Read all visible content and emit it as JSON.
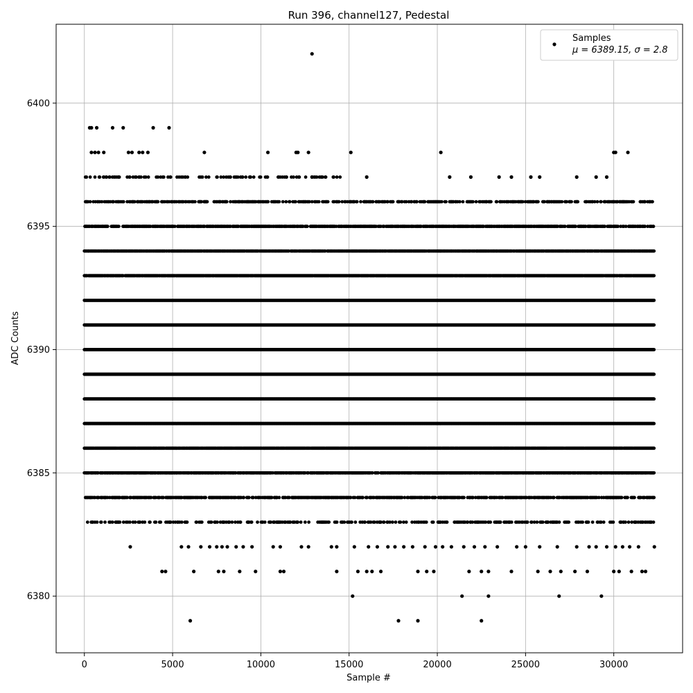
{
  "chart_data": {
    "type": "scatter",
    "title": "Run 396, channel127, Pedestal",
    "xlabel": "Sample #",
    "ylabel": "ADC Counts",
    "xlim": [
      -1600,
      33900
    ],
    "ylim": [
      6377.7,
      6403.2
    ],
    "xticks": [
      0,
      5000,
      10000,
      15000,
      20000,
      25000,
      30000
    ],
    "xtick_labels": [
      "0",
      "5000",
      "10000",
      "15000",
      "20000",
      "25000",
      "30000"
    ],
    "yticks": [
      6380,
      6385,
      6390,
      6395,
      6400
    ],
    "ytick_labels": [
      "6380",
      "6385",
      "6390",
      "6395",
      "6400"
    ],
    "grid": true,
    "legend": {
      "placement": "top-right",
      "name": "Samples",
      "stats": "μ = 6389.15, σ = 2.8"
    },
    "marker_color": "#000000",
    "sample_range": [
      0,
      32300
    ],
    "value_levels": [
      6379,
      6380,
      6381,
      6382,
      6383,
      6384,
      6385,
      6386,
      6387,
      6388,
      6389,
      6390,
      6391,
      6392,
      6393,
      6394,
      6395,
      6396,
      6397,
      6398,
      6399,
      6402
    ],
    "series": [
      {
        "name": "Samples",
        "points": [
          [
            12900,
            6402
          ],
          [
            6000,
            6379
          ],
          [
            17800,
            6379
          ],
          [
            18900,
            6379
          ],
          [
            22500,
            6379
          ],
          [
            15200,
            6380
          ],
          [
            21400,
            6380
          ],
          [
            22900,
            6380
          ],
          [
            26900,
            6380
          ],
          [
            29300,
            6380
          ],
          [
            300,
            6399
          ],
          [
            400,
            6399
          ],
          [
            700,
            6399
          ],
          [
            1600,
            6399
          ],
          [
            2200,
            6399
          ],
          [
            3900,
            6399
          ],
          [
            4800,
            6399
          ],
          [
            400,
            6398
          ],
          [
            600,
            6398
          ],
          [
            800,
            6398
          ],
          [
            1100,
            6398
          ],
          [
            2500,
            6398
          ],
          [
            2700,
            6398
          ],
          [
            3100,
            6398
          ],
          [
            3300,
            6398
          ],
          [
            3600,
            6398
          ],
          [
            6800,
            6398
          ],
          [
            10400,
            6398
          ],
          [
            12000,
            6398
          ],
          [
            12100,
            6398
          ],
          [
            12700,
            6398
          ],
          [
            15100,
            6398
          ],
          [
            20200,
            6398
          ],
          [
            30000,
            6398
          ],
          [
            30100,
            6398
          ],
          [
            30800,
            6398
          ],
          [
            4400,
            6381
          ],
          [
            4600,
            6381
          ],
          [
            6200,
            6381
          ],
          [
            7600,
            6381
          ],
          [
            7900,
            6381
          ],
          [
            8800,
            6381
          ],
          [
            9700,
            6381
          ],
          [
            11100,
            6381
          ],
          [
            11300,
            6381
          ],
          [
            14300,
            6381
          ],
          [
            15500,
            6381
          ],
          [
            16000,
            6381
          ],
          [
            16300,
            6381
          ],
          [
            16800,
            6381
          ],
          [
            18900,
            6381
          ],
          [
            19400,
            6381
          ],
          [
            19800,
            6381
          ],
          [
            21800,
            6381
          ],
          [
            22500,
            6381
          ],
          [
            22900,
            6381
          ],
          [
            24200,
            6381
          ],
          [
            25700,
            6381
          ],
          [
            26400,
            6381
          ],
          [
            27000,
            6381
          ],
          [
            27800,
            6381
          ],
          [
            28500,
            6381
          ],
          [
            30000,
            6381
          ],
          [
            30300,
            6381
          ],
          [
            31000,
            6381
          ],
          [
            31600,
            6381
          ],
          [
            31800,
            6381
          ],
          [
            2600,
            6382
          ],
          [
            5500,
            6382
          ],
          [
            5900,
            6382
          ],
          [
            6600,
            6382
          ],
          [
            7100,
            6382
          ],
          [
            7500,
            6382
          ],
          [
            7800,
            6382
          ],
          [
            8100,
            6382
          ],
          [
            8600,
            6382
          ],
          [
            9000,
            6382
          ],
          [
            9500,
            6382
          ],
          [
            10700,
            6382
          ],
          [
            11100,
            6382
          ],
          [
            12300,
            6382
          ],
          [
            12700,
            6382
          ],
          [
            14000,
            6382
          ],
          [
            14300,
            6382
          ],
          [
            15300,
            6382
          ],
          [
            16100,
            6382
          ],
          [
            16600,
            6382
          ],
          [
            17200,
            6382
          ],
          [
            17600,
            6382
          ],
          [
            18100,
            6382
          ],
          [
            18600,
            6382
          ],
          [
            19300,
            6382
          ],
          [
            19900,
            6382
          ],
          [
            20300,
            6382
          ],
          [
            20800,
            6382
          ],
          [
            21500,
            6382
          ],
          [
            22100,
            6382
          ],
          [
            22700,
            6382
          ],
          [
            23400,
            6382
          ],
          [
            24500,
            6382
          ],
          [
            25000,
            6382
          ],
          [
            25800,
            6382
          ],
          [
            26800,
            6382
          ],
          [
            27900,
            6382
          ],
          [
            28600,
            6382
          ],
          [
            29000,
            6382
          ],
          [
            29600,
            6382
          ],
          [
            30100,
            6382
          ],
          [
            30500,
            6382
          ],
          [
            30900,
            6382
          ],
          [
            31400,
            6382
          ],
          [
            32300,
            6382
          ],
          [
            12900,
            6397
          ],
          [
            16000,
            6397
          ],
          [
            20700,
            6397
          ],
          [
            21900,
            6397
          ],
          [
            23500,
            6397
          ],
          [
            24200,
            6397
          ],
          [
            25300,
            6397
          ],
          [
            25800,
            6397
          ],
          [
            27900,
            6397
          ],
          [
            29000,
            6397
          ],
          [
            29600,
            6397
          ]
        ],
        "dense_bands": [
          {
            "y": 6383,
            "from": 0,
            "to": 32300,
            "density": 0.3
          },
          {
            "y": 6384,
            "from": 0,
            "to": 32300,
            "density": 0.55
          },
          {
            "y": 6385,
            "from": 0,
            "to": 32300,
            "density": 0.8
          },
          {
            "y": 6386,
            "from": 0,
            "to": 32300,
            "density": 0.95
          },
          {
            "y": 6387,
            "from": 0,
            "to": 32300,
            "density": 1.0
          },
          {
            "y": 6388,
            "from": 0,
            "to": 32300,
            "density": 1.0
          },
          {
            "y": 6389,
            "from": 0,
            "to": 32300,
            "density": 1.0
          },
          {
            "y": 6390,
            "from": 0,
            "to": 32300,
            "density": 1.0
          },
          {
            "y": 6391,
            "from": 0,
            "to": 32300,
            "density": 1.0
          },
          {
            "y": 6392,
            "from": 0,
            "to": 32300,
            "density": 1.0
          },
          {
            "y": 6393,
            "from": 0,
            "to": 32300,
            "density": 0.95
          },
          {
            "y": 6394,
            "from": 0,
            "to": 32300,
            "density": 0.85
          },
          {
            "y": 6395,
            "from": 0,
            "to": 32300,
            "density": 0.7
          },
          {
            "y": 6396,
            "from": 0,
            "to": 32300,
            "density": 0.4
          },
          {
            "y": 6397,
            "from": 0,
            "to": 14500,
            "density": 0.22
          }
        ]
      }
    ]
  }
}
